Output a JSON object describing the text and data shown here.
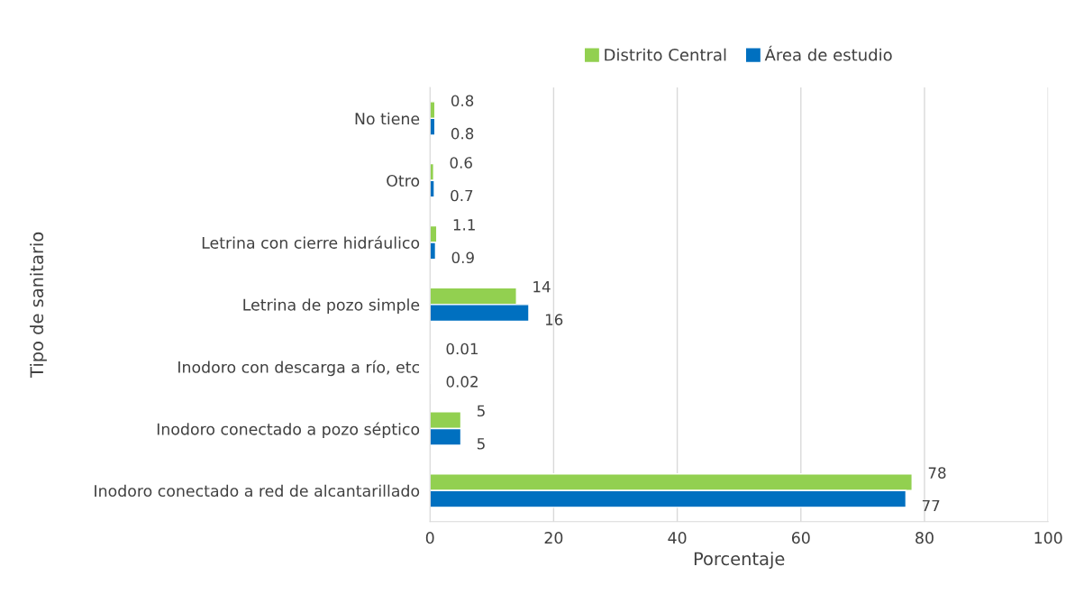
{
  "chart_data": {
    "type": "bar",
    "orientation": "horizontal",
    "xlabel": "Porcentaje",
    "ylabel": "Tipo de sanitario",
    "categories": [
      "No tiene",
      "Otro",
      "Letrina con cierre hidráulico",
      "Letrina de pozo simple",
      "Inodoro con descarga a río, etc",
      "Inodoro conectado a pozo séptico",
      "Inodoro conectado a red de alcantarillado"
    ],
    "series": [
      {
        "name": "Distrito Central",
        "color": "#92d050",
        "values": [
          0.8,
          0.6,
          1.1,
          14,
          0.01,
          5,
          78
        ]
      },
      {
        "name": "Área de estudio",
        "color": "#0070c0",
        "values": [
          0.8,
          0.7,
          0.9,
          16,
          0.02,
          5,
          77
        ]
      }
    ],
    "xlim": [
      0,
      100
    ],
    "xticks": [
      0,
      20,
      40,
      60,
      80,
      100
    ],
    "grid": "x",
    "legend": "top",
    "data_labels": true
  }
}
